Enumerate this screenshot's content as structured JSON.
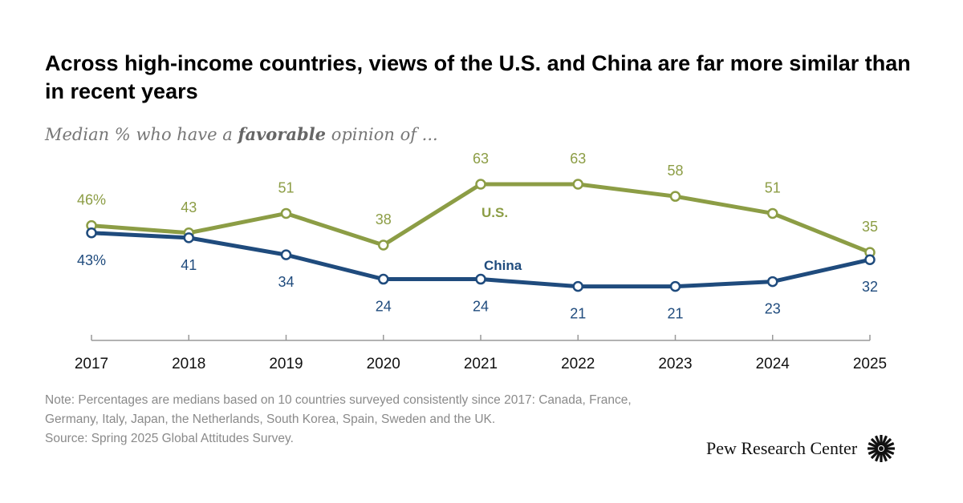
{
  "title": "Across high-income countries, views of the U.S. and China are far more similar than in recent years",
  "subtitle": {
    "before": "Median % who have a ",
    "emphasis": "favorable",
    "after": " opinion of ..."
  },
  "chart_data": {
    "type": "line",
    "x": [
      "2017",
      "2018",
      "2019",
      "2020",
      "2021",
      "2022",
      "2023",
      "2024",
      "2025"
    ],
    "series": [
      {
        "name": "U.S.",
        "color": "#8c9d45",
        "values": [
          46,
          43,
          51,
          38,
          63,
          63,
          58,
          51,
          35
        ],
        "labels": [
          "46%",
          "43",
          "51",
          "38",
          "63",
          "63",
          "58",
          "51",
          "35"
        ]
      },
      {
        "name": "China",
        "color": "#1f4b7d",
        "values": [
          43,
          41,
          34,
          24,
          24,
          21,
          21,
          23,
          32
        ],
        "labels": [
          "43%",
          "41",
          "34",
          "24",
          "24",
          "21",
          "21",
          "23",
          "32"
        ]
      }
    ],
    "ylim": [
      0,
      70
    ],
    "grid": false,
    "legend": "inline labels on lines"
  },
  "notes": [
    "Note: Percentages are medians based on 10 countries surveyed consistently since 2017: Canada, France,",
    "Germany, Italy, Japan, the Netherlands, South Korea, Spain, Sweden and the UK.",
    "Source: Spring 2025 Global Attitudes Survey."
  ],
  "logo": {
    "text": "Pew Research Center",
    "icon": "pew-sunburst-icon"
  }
}
